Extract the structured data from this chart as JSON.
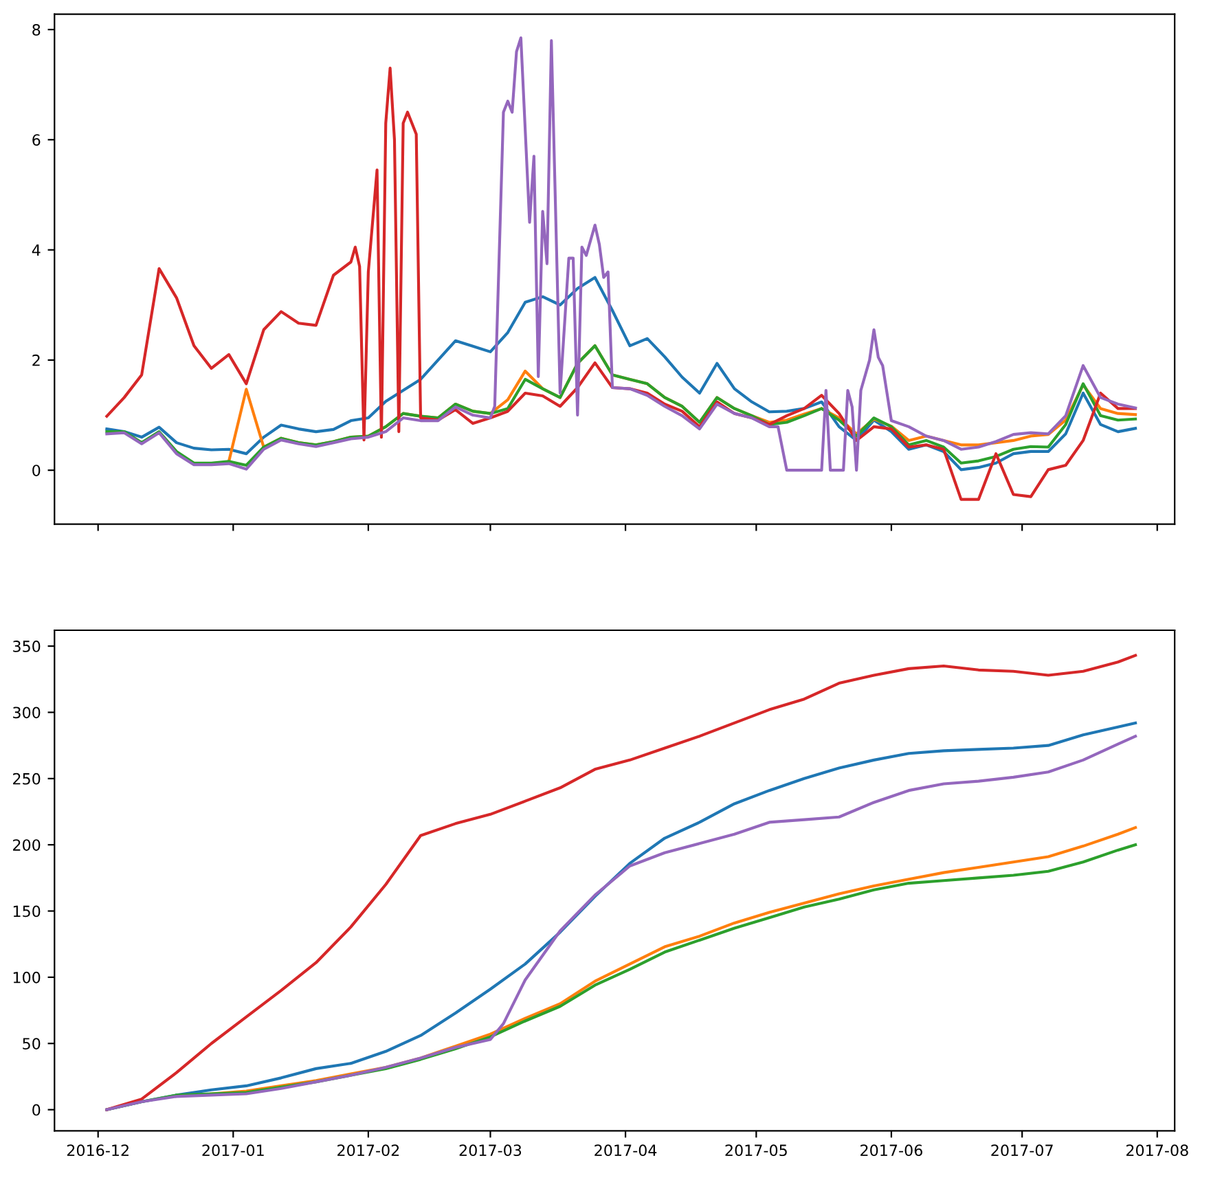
{
  "chart_data": [
    {
      "type": "line",
      "tick_labels": "y",
      "grid": false,
      "xlim": [
        "2016-11-21",
        "2017-08-05"
      ],
      "ylim": [
        -0.98,
        8.28
      ],
      "yticks": [
        0,
        2,
        4,
        6,
        8
      ],
      "xticks": [
        {
          "value": "2016-12",
          "label": null
        },
        {
          "value": "2017-01",
          "label": null
        },
        {
          "value": "2017-02",
          "label": null
        },
        {
          "value": "2017-03",
          "label": null
        },
        {
          "value": "2017-04",
          "label": null
        },
        {
          "value": "2017-05",
          "label": null
        },
        {
          "value": "2017-06",
          "label": null
        },
        {
          "value": "2017-07",
          "label": null
        },
        {
          "value": "2017-08",
          "label": null
        }
      ],
      "x": [
        "2016-12-03",
        "2016-12-07",
        "2016-12-11",
        "2016-12-15",
        "2016-12-19",
        "2016-12-23",
        "2016-12-27",
        "2016-12-31",
        "2017-01-04",
        "2017-01-08",
        "2017-01-12",
        "2017-01-16",
        "2017-01-20",
        "2017-01-24",
        "2017-01-28",
        "2017-02-01",
        "2017-02-05",
        "2017-02-09",
        "2017-02-13",
        "2017-02-17",
        "2017-02-21",
        "2017-02-25",
        "2017-03-01",
        "2017-03-05",
        "2017-03-09",
        "2017-03-13",
        "2017-03-17",
        "2017-03-21",
        "2017-03-25",
        "2017-03-29",
        "2017-04-02",
        "2017-04-06",
        "2017-04-10",
        "2017-04-14",
        "2017-04-18",
        "2017-04-22",
        "2017-04-26",
        "2017-04-30",
        "2017-05-04",
        "2017-05-08",
        "2017-05-12",
        "2017-05-16",
        "2017-05-20",
        "2017-05-24",
        "2017-05-28",
        "2017-06-01",
        "2017-06-05",
        "2017-06-09",
        "2017-06-13",
        "2017-06-17",
        "2017-06-21",
        "2017-06-25",
        "2017-06-29",
        "2017-07-03",
        "2017-07-07",
        "2017-07-11",
        "2017-07-15",
        "2017-07-19",
        "2017-07-23",
        "2017-07-27"
      ],
      "series": [
        {
          "color": "#1f77b4",
          "values": [
            0.75,
            0.7,
            0.6,
            0.78,
            0.5,
            0.4,
            0.37,
            0.38,
            0.3,
            0.6,
            0.82,
            0.75,
            0.7,
            0.74,
            0.9,
            0.95,
            1.25,
            1.45,
            1.65,
            2.0,
            2.35,
            2.25,
            2.15,
            2.5,
            3.05,
            3.15,
            3.0,
            3.3,
            3.5,
            2.9,
            2.26,
            2.39,
            2.06,
            1.69,
            1.4,
            1.94,
            1.48,
            1.24,
            1.06,
            1.07,
            1.12,
            1.24,
            0.79,
            0.54,
            0.91,
            0.7,
            0.38,
            0.46,
            0.34,
            0.01,
            0.05,
            0.13,
            0.3,
            0.34,
            0.34,
            0.66,
            1.4,
            0.83,
            0.7,
            0.76
          ]
        },
        {
          "color": "#ff7f0e",
          "values": [
            null,
            null,
            null,
            null,
            null,
            null,
            null,
            0.16,
            1.47,
            0.42,
            0.58,
            0.5,
            0.46,
            0.52,
            0.6,
            0.62,
            0.79,
            1.03,
            0.98,
            0.95,
            1.2,
            1.07,
            1.03,
            1.28,
            1.8,
            1.48,
            1.32,
            1.94,
            2.26,
            1.73,
            1.65,
            1.57,
            1.32,
            1.16,
            0.87,
            1.32,
            1.12,
            0.99,
            0.87,
            0.91,
            1.02,
            1.12,
            0.95,
            0.66,
            0.93,
            0.8,
            0.54,
            0.62,
            0.54,
            0.46,
            0.46,
            0.5,
            0.54,
            0.62,
            0.65,
            0.91,
            1.55,
            1.12,
            1.03,
            1.01
          ]
        },
        {
          "color": "#2ca02c",
          "values": [
            0.7,
            0.7,
            0.5,
            0.7,
            0.34,
            0.13,
            0.13,
            0.16,
            0.09,
            0.42,
            0.58,
            0.5,
            0.46,
            0.52,
            0.6,
            0.62,
            0.79,
            1.03,
            0.98,
            0.95,
            1.2,
            1.07,
            1.03,
            1.12,
            1.65,
            1.48,
            1.32,
            1.94,
            2.26,
            1.73,
            1.65,
            1.57,
            1.32,
            1.16,
            0.87,
            1.32,
            1.12,
            0.99,
            0.83,
            0.87,
            0.99,
            1.12,
            0.91,
            0.62,
            0.95,
            0.79,
            0.46,
            0.54,
            0.42,
            0.13,
            0.17,
            0.25,
            0.38,
            0.43,
            0.42,
            0.83,
            1.57,
            0.99,
            0.91,
            0.93
          ]
        },
        {
          "color": "#d62728",
          "x": [
            "2016-12-03",
            "2016-12-07",
            "2016-12-11",
            "2016-12-15",
            "2016-12-19",
            "2016-12-23",
            "2016-12-27",
            "2016-12-31",
            "2017-01-04",
            "2017-01-08",
            "2017-01-12",
            "2017-01-16",
            "2017-01-20",
            "2017-01-24",
            "2017-01-28",
            "2017-01-29",
            "2017-01-30",
            "2017-01-31",
            "2017-02-01",
            "2017-02-03",
            "2017-02-04",
            "2017-02-05",
            "2017-02-06",
            "2017-02-07",
            "2017-02-08",
            "2017-02-09",
            "2017-02-10",
            "2017-02-12",
            "2017-02-13",
            "2017-02-17",
            "2017-02-21",
            "2017-02-25",
            "2017-03-01",
            "2017-03-05",
            "2017-03-09",
            "2017-03-13",
            "2017-03-17",
            "2017-03-21",
            "2017-03-25",
            "2017-03-29",
            "2017-04-02",
            "2017-04-06",
            "2017-04-10",
            "2017-04-14",
            "2017-04-18",
            "2017-04-22",
            "2017-04-26",
            "2017-04-30",
            "2017-05-04",
            "2017-05-08",
            "2017-05-12",
            "2017-05-16",
            "2017-05-20",
            "2017-05-24",
            "2017-05-28",
            "2017-06-01",
            "2017-06-05",
            "2017-06-09",
            "2017-06-13",
            "2017-06-17",
            "2017-06-21",
            "2017-06-25",
            "2017-06-29",
            "2017-07-03",
            "2017-07-07",
            "2017-07-11",
            "2017-07-15",
            "2017-07-19",
            "2017-07-23",
            "2017-07-27"
          ],
          "values": [
            0.98,
            1.32,
            1.73,
            3.66,
            3.13,
            2.26,
            1.85,
            2.1,
            1.57,
            2.55,
            2.88,
            2.67,
            2.63,
            3.54,
            3.78,
            4.05,
            3.7,
            0.55,
            3.6,
            5.45,
            0.6,
            6.3,
            7.3,
            6.0,
            0.7,
            6.3,
            6.5,
            6.1,
            0.95,
            0.91,
            1.1,
            0.85,
            0.95,
            1.07,
            1.4,
            1.35,
            1.16,
            1.5,
            1.95,
            1.5,
            1.48,
            1.4,
            1.2,
            1.07,
            0.79,
            1.24,
            1.03,
            0.95,
            0.83,
            0.99,
            1.12,
            1.36,
            1.03,
            0.54,
            0.79,
            0.75,
            0.42,
            0.46,
            0.38,
            -0.53,
            -0.53,
            0.3,
            -0.44,
            -0.48,
            0.01,
            0.09,
            0.54,
            1.4,
            1.12,
            1.12
          ]
        },
        {
          "color": "#9467bd",
          "x": [
            "2016-12-03",
            "2016-12-07",
            "2016-12-11",
            "2016-12-15",
            "2016-12-19",
            "2016-12-23",
            "2016-12-27",
            "2016-12-31",
            "2017-01-04",
            "2017-01-08",
            "2017-01-12",
            "2017-01-16",
            "2017-01-20",
            "2017-01-24",
            "2017-01-28",
            "2017-02-01",
            "2017-02-05",
            "2017-02-09",
            "2017-02-13",
            "2017-02-17",
            "2017-02-21",
            "2017-02-25",
            "2017-03-01",
            "2017-03-02",
            "2017-03-04",
            "2017-03-05",
            "2017-03-06",
            "2017-03-07",
            "2017-03-08",
            "2017-03-10",
            "2017-03-11",
            "2017-03-12",
            "2017-03-13",
            "2017-03-14",
            "2017-03-15",
            "2017-03-17",
            "2017-03-19",
            "2017-03-20",
            "2017-03-21",
            "2017-03-22",
            "2017-03-23",
            "2017-03-25",
            "2017-03-26",
            "2017-03-27",
            "2017-03-28",
            "2017-03-29",
            "2017-04-02",
            "2017-04-06",
            "2017-04-10",
            "2017-04-14",
            "2017-04-18",
            "2017-04-22",
            "2017-04-26",
            "2017-04-30",
            "2017-05-04",
            "2017-05-06",
            "2017-05-08",
            "2017-05-16",
            "2017-05-17",
            "2017-05-18",
            "2017-05-21",
            "2017-05-22",
            "2017-05-23",
            "2017-05-24",
            "2017-05-25",
            "2017-05-27",
            "2017-05-28",
            "2017-05-29",
            "2017-05-30",
            "2017-06-01",
            "2017-06-05",
            "2017-06-09",
            "2017-06-13",
            "2017-06-17",
            "2017-06-21",
            "2017-06-25",
            "2017-06-29",
            "2017-07-03",
            "2017-07-07",
            "2017-07-11",
            "2017-07-15",
            "2017-07-19",
            "2017-07-23",
            "2017-07-27"
          ],
          "values": [
            0.66,
            0.68,
            0.48,
            0.68,
            0.3,
            0.1,
            0.1,
            0.12,
            0.02,
            0.38,
            0.55,
            0.48,
            0.43,
            0.5,
            0.57,
            0.6,
            0.7,
            0.95,
            0.9,
            0.9,
            1.15,
            1.0,
            0.95,
            1.16,
            6.5,
            6.7,
            6.5,
            7.6,
            7.85,
            4.5,
            5.7,
            1.7,
            4.7,
            3.75,
            7.8,
            1.4,
            3.85,
            3.85,
            1.0,
            4.05,
            3.9,
            4.45,
            4.1,
            3.5,
            3.6,
            1.5,
            1.48,
            1.36,
            1.16,
            0.99,
            0.75,
            1.2,
            1.03,
            0.95,
            0.79,
            0.79,
            0,
            0,
            1.45,
            0,
            0,
            1.45,
            1.15,
            0,
            1.45,
            2.0,
            2.55,
            2.05,
            1.9,
            0.9,
            0.79,
            0.62,
            0.54,
            0.38,
            0.42,
            0.52,
            0.65,
            0.68,
            0.66,
            0.99,
            1.9,
            1.32,
            1.2,
            1.13
          ]
        }
      ]
    },
    {
      "type": "line",
      "grid": false,
      "xlim": [
        "2016-11-21",
        "2017-08-05"
      ],
      "ylim": [
        -16,
        362
      ],
      "yticks": [
        0,
        50,
        100,
        150,
        200,
        250,
        300,
        350
      ],
      "xticks": [
        {
          "value": "2016-12",
          "label": "2016-12"
        },
        {
          "value": "2017-01",
          "label": "2017-01"
        },
        {
          "value": "2017-02",
          "label": "2017-02"
        },
        {
          "value": "2017-03",
          "label": "2017-03"
        },
        {
          "value": "2017-04",
          "label": "2017-04"
        },
        {
          "value": "2017-05",
          "label": "2017-05"
        },
        {
          "value": "2017-06",
          "label": "2017-06"
        },
        {
          "value": "2017-07",
          "label": "2017-07"
        },
        {
          "value": "2017-08",
          "label": "2017-08"
        }
      ],
      "x": [
        "2016-12-03",
        "2016-12-11",
        "2016-12-19",
        "2016-12-27",
        "2017-01-04",
        "2017-01-12",
        "2017-01-20",
        "2017-01-28",
        "2017-02-05",
        "2017-02-13",
        "2017-02-21",
        "2017-03-01",
        "2017-03-09",
        "2017-03-17",
        "2017-03-25",
        "2017-04-02",
        "2017-04-10",
        "2017-04-18",
        "2017-04-26",
        "2017-05-04",
        "2017-05-12",
        "2017-05-20",
        "2017-05-28",
        "2017-06-05",
        "2017-06-13",
        "2017-06-21",
        "2017-06-29",
        "2017-07-07",
        "2017-07-15",
        "2017-07-23",
        "2017-07-27"
      ],
      "series": [
        {
          "color": "#1f77b4",
          "values": [
            0,
            6,
            11,
            15,
            18,
            24,
            31,
            35,
            44,
            56,
            73,
            91,
            110,
            134,
            161,
            186,
            205,
            217,
            231,
            241,
            250,
            258,
            264,
            269,
            271,
            272,
            273,
            275,
            283,
            289,
            292
          ]
        },
        {
          "color": "#ff7f0e",
          "values": [
            null,
            null,
            null,
            12,
            14,
            18,
            22,
            27,
            32,
            39,
            48,
            57,
            69,
            80,
            97,
            110,
            123,
            131,
            141,
            149,
            156,
            163,
            169,
            174,
            179,
            183,
            187,
            191,
            199,
            208,
            213
          ]
        },
        {
          "color": "#2ca02c",
          "values": [
            0,
            6,
            11,
            12,
            13,
            17,
            21,
            26,
            31,
            38,
            46,
            55,
            67,
            78,
            94,
            106,
            119,
            128,
            137,
            145,
            153,
            159,
            166,
            171,
            173,
            175,
            177,
            180,
            187,
            196,
            200
          ]
        },
        {
          "color": "#d62728",
          "values": [
            0,
            8,
            28,
            50,
            70,
            90,
            111,
            138,
            170,
            207,
            216,
            223,
            233,
            243,
            257,
            264,
            273,
            282,
            292,
            302,
            310,
            322,
            328,
            333,
            335,
            332,
            331,
            328,
            331,
            338,
            343
          ]
        },
        {
          "color": "#9467bd",
          "x": [
            "2016-12-03",
            "2016-12-11",
            "2016-12-19",
            "2016-12-27",
            "2017-01-04",
            "2017-01-12",
            "2017-01-20",
            "2017-01-28",
            "2017-02-05",
            "2017-02-13",
            "2017-02-21",
            "2017-03-01",
            "2017-03-04",
            "2017-03-09",
            "2017-03-17",
            "2017-03-25",
            "2017-04-02",
            "2017-04-10",
            "2017-04-18",
            "2017-04-26",
            "2017-05-04",
            "2017-05-12",
            "2017-05-20",
            "2017-05-28",
            "2017-06-05",
            "2017-06-13",
            "2017-06-21",
            "2017-06-29",
            "2017-07-07",
            "2017-07-15",
            "2017-07-23",
            "2017-07-27"
          ],
          "values": [
            0,
            6,
            10,
            11,
            12,
            16,
            21,
            26,
            32,
            39,
            47,
            53,
            65,
            98,
            135,
            162,
            184,
            194,
            201,
            208,
            217,
            219,
            221,
            232,
            241,
            246,
            248,
            251,
            255,
            264,
            276,
            282
          ]
        }
      ]
    }
  ]
}
